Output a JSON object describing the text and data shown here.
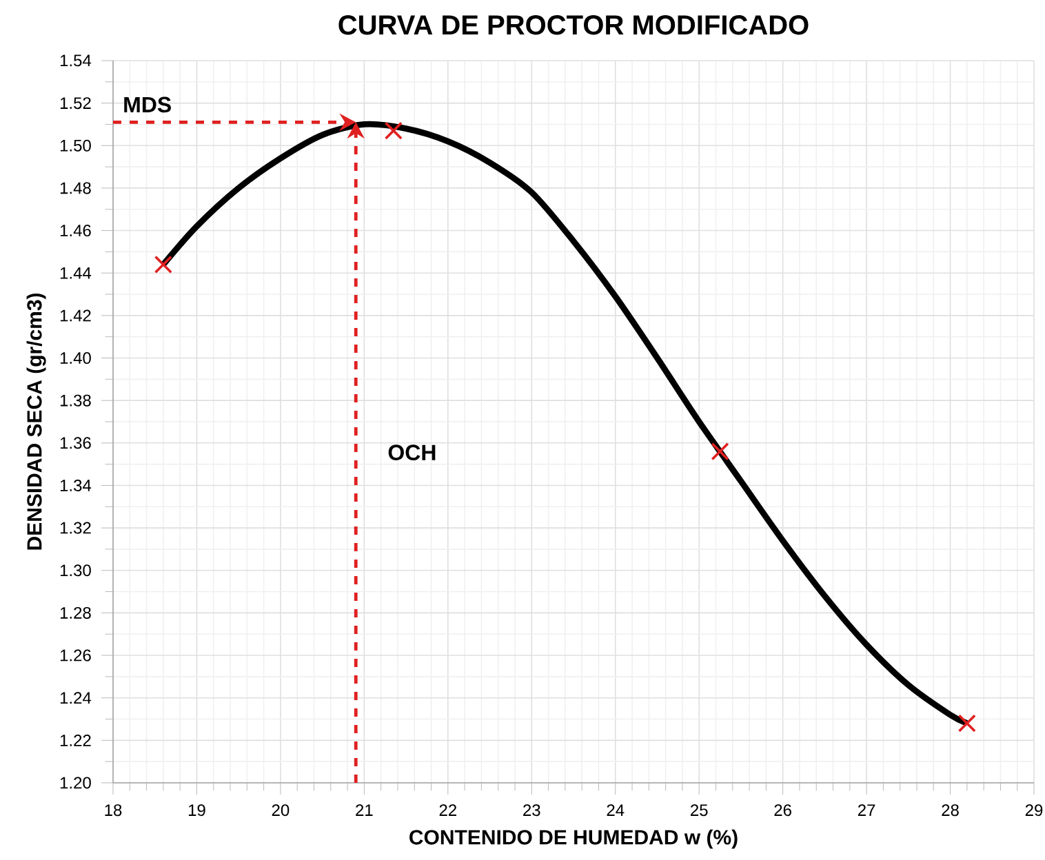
{
  "chart_data": {
    "type": "line",
    "title": "CURVA DE PROCTOR MODIFICADO",
    "xlabel": "CONTENIDO DE HUMEDAD w (%)",
    "ylabel": "DENSIDAD SECA (gr/cm3)",
    "xlim": [
      18,
      29
    ],
    "ylim": [
      1.2,
      1.54
    ],
    "xticks": [
      18,
      19,
      20,
      21,
      22,
      23,
      24,
      25,
      26,
      27,
      28,
      29
    ],
    "yticks": [
      {
        "value": 1.2,
        "label": "1.20"
      },
      {
        "value": 1.22,
        "label": "1.22"
      },
      {
        "value": 1.24,
        "label": "1.24"
      },
      {
        "value": 1.26,
        "label": "1.26"
      },
      {
        "value": 1.28,
        "label": "1.28"
      },
      {
        "value": 1.3,
        "label": "1.30"
      },
      {
        "value": 1.32,
        "label": "1.32"
      },
      {
        "value": 1.34,
        "label": "1.34"
      },
      {
        "value": 1.36,
        "label": "1.36"
      },
      {
        "value": 1.38,
        "label": "1.38"
      },
      {
        "value": 1.4,
        "label": "1.40"
      },
      {
        "value": 1.42,
        "label": "1.42"
      },
      {
        "value": 1.44,
        "label": "1.44"
      },
      {
        "value": 1.46,
        "label": "1.46"
      },
      {
        "value": 1.48,
        "label": "1.48"
      },
      {
        "value": 1.5,
        "label": "1.50"
      },
      {
        "value": 1.52,
        "label": "1.52"
      },
      {
        "value": 1.54,
        "label": "1.54"
      }
    ],
    "grid": true,
    "series": [
      {
        "color": "#000000",
        "marker": "none",
        "line_style": "solid",
        "x": [
          18.6,
          19,
          19.5,
          20,
          20.5,
          21,
          21.5,
          22,
          22.5,
          23,
          23.5,
          24,
          24.5,
          25,
          25.5,
          26,
          26.5,
          27,
          27.5,
          28,
          28.2
        ],
        "values": [
          1.444,
          1.462,
          1.48,
          1.494,
          1.505,
          1.51,
          1.508,
          1.502,
          1.492,
          1.478,
          1.455,
          1.429,
          1.4,
          1.37,
          1.342,
          1.314,
          1.288,
          1.265,
          1.246,
          1.232,
          1.228
        ]
      },
      {
        "type": "scatter",
        "color": "#e02020",
        "marker": "cross",
        "x": [
          18.6,
          21.35,
          25.25,
          28.2
        ],
        "values": [
          1.444,
          1.507,
          1.356,
          1.228
        ]
      }
    ],
    "ref_lines": [
      {
        "axis": "y",
        "value": 1.511,
        "label": "MDS",
        "color": "#e02020",
        "line_style": "dashed"
      },
      {
        "axis": "x",
        "value": 20.9,
        "label": "OCH",
        "color": "#e02020",
        "line_style": "dashed"
      }
    ]
  }
}
